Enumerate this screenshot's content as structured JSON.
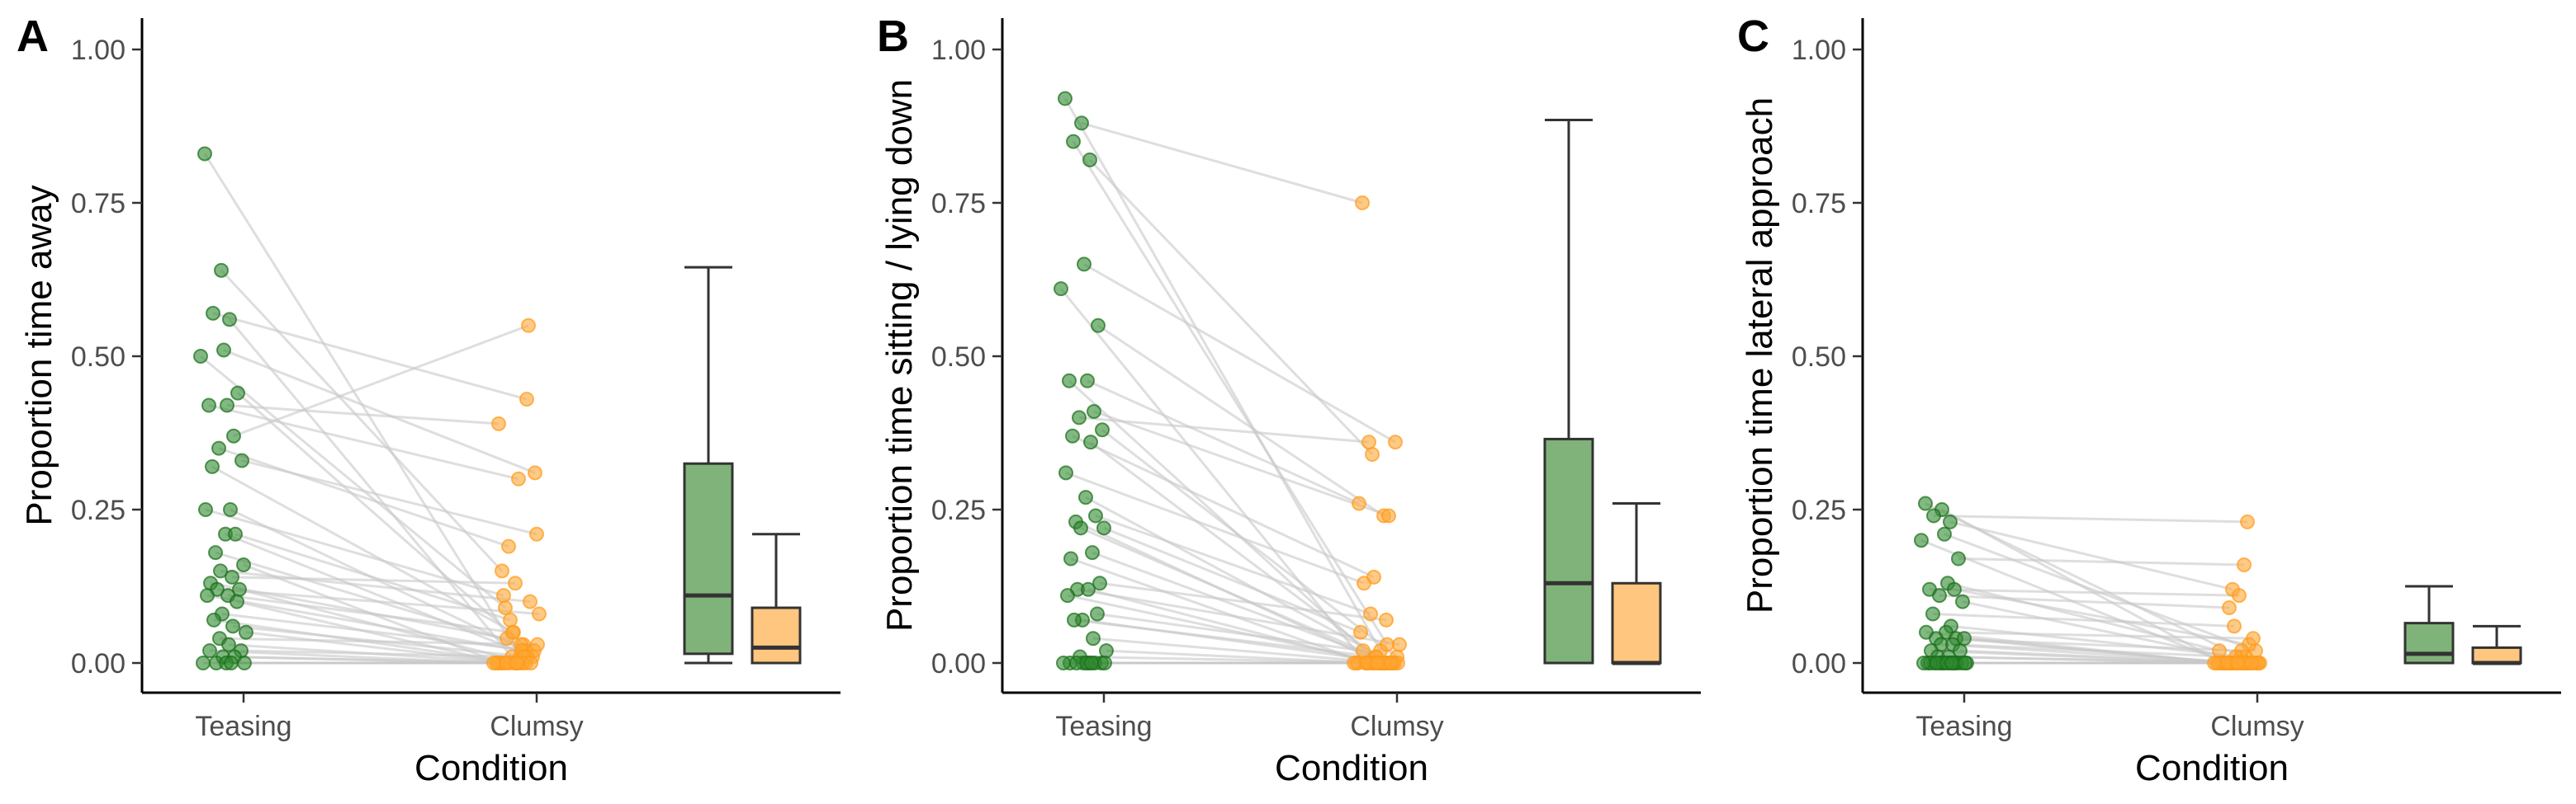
{
  "colors": {
    "teasing_point": "#2e8b2e",
    "clumsy_point": "#ffa733",
    "teasing_box": "#80b37a",
    "clumsy_box": "#ffc67f",
    "line": "#c8c8c8"
  },
  "chart_data": [
    {
      "type": "scatter",
      "panel": "A",
      "xlabel": "Condition",
      "ylabel": "Proportion time away",
      "categories": [
        "Teasing",
        "Clumsy"
      ],
      "y_ticks": [
        "0.00",
        "0.25",
        "0.50",
        "0.75",
        "1.00"
      ],
      "ylim": [
        0,
        1
      ],
      "pairs": [
        [
          0.83,
          0.01
        ],
        [
          0.64,
          0.15
        ],
        [
          0.57,
          0.43
        ],
        [
          0.56,
          0.01
        ],
        [
          0.51,
          0.31
        ],
        [
          0.5,
          0.09
        ],
        [
          0.44,
          0.03
        ],
        [
          0.42,
          0.39
        ],
        [
          0.42,
          0.3
        ],
        [
          0.37,
          0.55
        ],
        [
          0.35,
          0.19
        ],
        [
          0.33,
          0.21
        ],
        [
          0.32,
          0.05
        ],
        [
          0.25,
          0.02
        ],
        [
          0.25,
          0.11
        ],
        [
          0.21,
          0.01
        ],
        [
          0.21,
          0.07
        ],
        [
          0.18,
          0.03
        ],
        [
          0.16,
          0.0
        ],
        [
          0.15,
          0.1
        ],
        [
          0.14,
          0.13
        ],
        [
          0.13,
          0.04
        ],
        [
          0.12,
          0.0
        ],
        [
          0.12,
          0.08
        ],
        [
          0.11,
          0.05
        ],
        [
          0.11,
          0.02
        ],
        [
          0.1,
          0.0
        ],
        [
          0.08,
          0.02
        ],
        [
          0.07,
          0.0
        ],
        [
          0.06,
          0.01
        ],
        [
          0.05,
          0.0
        ],
        [
          0.04,
          0.03
        ],
        [
          0.03,
          0.0
        ],
        [
          0.02,
          0.0
        ],
        [
          0.02,
          0.01
        ],
        [
          0.01,
          0.0
        ],
        [
          0.01,
          0.0
        ],
        [
          0.0,
          0.0
        ],
        [
          0.0,
          0.0
        ],
        [
          0.0,
          0.0
        ],
        [
          0.0,
          0.0
        ],
        [
          0.0,
          0.0
        ]
      ],
      "box": {
        "Teasing": {
          "min": 0.0,
          "q1": 0.015,
          "median": 0.11,
          "q3": 0.325,
          "max": 0.645
        },
        "Clumsy": {
          "min": 0.0,
          "q1": 0.0,
          "median": 0.025,
          "q3": 0.09,
          "max": 0.21
        }
      },
      "grid": false
    },
    {
      "type": "scatter",
      "panel": "B",
      "xlabel": "Condition",
      "ylabel": "Proportion time sitting / lying down",
      "categories": [
        "Teasing",
        "Clumsy"
      ],
      "y_ticks": [
        "0.00",
        "0.25",
        "0.50",
        "0.75",
        "1.00"
      ],
      "ylim": [
        0,
        1
      ],
      "pairs": [
        [
          0.92,
          0.02
        ],
        [
          0.88,
          0.75
        ],
        [
          0.85,
          0.03
        ],
        [
          0.82,
          0.34
        ],
        [
          0.65,
          0.36
        ],
        [
          0.61,
          0.0
        ],
        [
          0.55,
          0.24
        ],
        [
          0.46,
          0.26
        ],
        [
          0.46,
          0.0
        ],
        [
          0.41,
          0.24
        ],
        [
          0.4,
          0.36
        ],
        [
          0.38,
          0.01
        ],
        [
          0.37,
          0.14
        ],
        [
          0.36,
          0.0
        ],
        [
          0.31,
          0.13
        ],
        [
          0.27,
          0.0
        ],
        [
          0.24,
          0.08
        ],
        [
          0.23,
          0.0
        ],
        [
          0.22,
          0.05
        ],
        [
          0.22,
          0.0
        ],
        [
          0.18,
          0.01
        ],
        [
          0.17,
          0.0
        ],
        [
          0.13,
          0.07
        ],
        [
          0.12,
          0.03
        ],
        [
          0.12,
          0.0
        ],
        [
          0.11,
          0.0
        ],
        [
          0.08,
          0.02
        ],
        [
          0.07,
          0.0
        ],
        [
          0.07,
          0.01
        ],
        [
          0.04,
          0.0
        ],
        [
          0.02,
          0.0
        ],
        [
          0.01,
          0.0
        ],
        [
          0.0,
          0.0
        ],
        [
          0.0,
          0.0
        ],
        [
          0.0,
          0.0
        ],
        [
          0.0,
          0.0
        ],
        [
          0.0,
          0.0
        ],
        [
          0.0,
          0.0
        ],
        [
          0.0,
          0.0
        ],
        [
          0.0,
          0.0
        ],
        [
          0.0,
          0.0
        ],
        [
          0.0,
          0.0
        ]
      ],
      "box": {
        "Teasing": {
          "min": 0.0,
          "q1": 0.0,
          "median": 0.13,
          "q3": 0.365,
          "max": 0.885
        },
        "Clumsy": {
          "min": 0.0,
          "q1": 0.0,
          "median": 0.0,
          "q3": 0.13,
          "max": 0.26
        }
      },
      "grid": false
    },
    {
      "type": "scatter",
      "panel": "C",
      "xlabel": "Condition",
      "ylabel": "Proportion time lateral approach",
      "categories": [
        "Teasing",
        "Clumsy"
      ],
      "y_ticks": [
        "0.00",
        "0.25",
        "0.50",
        "0.75",
        "1.00"
      ],
      "ylim": [
        0,
        1
      ],
      "pairs": [
        [
          0.26,
          0.01
        ],
        [
          0.25,
          0.0
        ],
        [
          0.24,
          0.23
        ],
        [
          0.23,
          0.12
        ],
        [
          0.21,
          0.02
        ],
        [
          0.2,
          0.0
        ],
        [
          0.17,
          0.16
        ],
        [
          0.13,
          0.02
        ],
        [
          0.12,
          0.11
        ],
        [
          0.12,
          0.03
        ],
        [
          0.11,
          0.09
        ],
        [
          0.1,
          0.0
        ],
        [
          0.08,
          0.06
        ],
        [
          0.06,
          0.01
        ],
        [
          0.05,
          0.0
        ],
        [
          0.05,
          0.04
        ],
        [
          0.04,
          0.0
        ],
        [
          0.04,
          0.02
        ],
        [
          0.04,
          0.0
        ],
        [
          0.03,
          0.0
        ],
        [
          0.03,
          0.01
        ],
        [
          0.02,
          0.0
        ],
        [
          0.02,
          0.0
        ],
        [
          0.01,
          0.0
        ],
        [
          0.01,
          0.0
        ],
        [
          0.0,
          0.0
        ],
        [
          0.0,
          0.0
        ],
        [
          0.0,
          0.0
        ],
        [
          0.0,
          0.0
        ],
        [
          0.0,
          0.0
        ],
        [
          0.0,
          0.0
        ],
        [
          0.0,
          0.0
        ],
        [
          0.0,
          0.0
        ],
        [
          0.0,
          0.0
        ],
        [
          0.0,
          0.0
        ],
        [
          0.0,
          0.0
        ],
        [
          0.0,
          0.0
        ],
        [
          0.0,
          0.0
        ],
        [
          0.0,
          0.0
        ],
        [
          0.0,
          0.0
        ],
        [
          0.0,
          0.0
        ],
        [
          0.0,
          0.0
        ]
      ],
      "box": {
        "Teasing": {
          "min": 0.0,
          "q1": 0.0,
          "median": 0.015,
          "q3": 0.065,
          "max": 0.125
        },
        "Clumsy": {
          "min": 0.0,
          "q1": 0.0,
          "median": 0.0,
          "q3": 0.025,
          "max": 0.06
        }
      },
      "grid": false
    }
  ]
}
